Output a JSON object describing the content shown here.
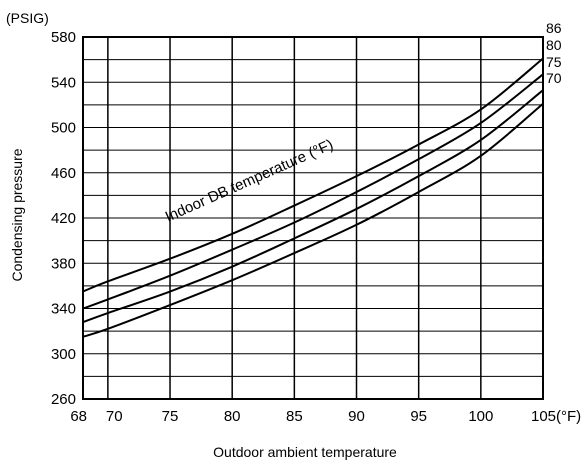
{
  "chart_data": {
    "type": "line",
    "title": "",
    "xlabel": "Outdoor ambient temperature",
    "ylabel": "Condensing pressure",
    "y_unit": "(PSIG)",
    "x_unit": "(°F)",
    "xlim": [
      68,
      105
    ],
    "ylim": [
      260,
      580
    ],
    "x_ticks": [
      68,
      70,
      75,
      80,
      85,
      90,
      95,
      100,
      105
    ],
    "x_tick_labels": [
      "68",
      "70",
      "75",
      "80",
      "85",
      "90",
      "95",
      "100",
      "105(°F)"
    ],
    "y_ticks": [
      260,
      300,
      340,
      380,
      420,
      460,
      500,
      540,
      580
    ],
    "y_tick_labels": [
      "260",
      "300",
      "340",
      "380",
      "420",
      "460",
      "500",
      "540",
      "580"
    ],
    "grid": true,
    "annotation": "Indoor DB temperature (°F)",
    "series": [
      {
        "name": "86",
        "x": [
          68,
          70,
          75,
          80,
          85,
          90,
          95,
          100,
          105
        ],
        "values": [
          355,
          364,
          384,
          406,
          431,
          457,
          485,
          516,
          561
        ]
      },
      {
        "name": "80",
        "x": [
          68,
          70,
          75,
          80,
          85,
          90,
          95,
          100,
          105
        ],
        "values": [
          340,
          348,
          369,
          392,
          416,
          443,
          472,
          504,
          547
        ]
      },
      {
        "name": "75",
        "x": [
          68,
          70,
          75,
          80,
          85,
          90,
          95,
          100,
          105
        ],
        "values": [
          328,
          336,
          355,
          377,
          402,
          428,
          457,
          489,
          533
        ]
      },
      {
        "name": "70",
        "x": [
          68,
          70,
          75,
          80,
          85,
          90,
          95,
          100,
          105
        ],
        "values": [
          315,
          322,
          343,
          365,
          389,
          414,
          443,
          475,
          521
        ]
      }
    ]
  }
}
